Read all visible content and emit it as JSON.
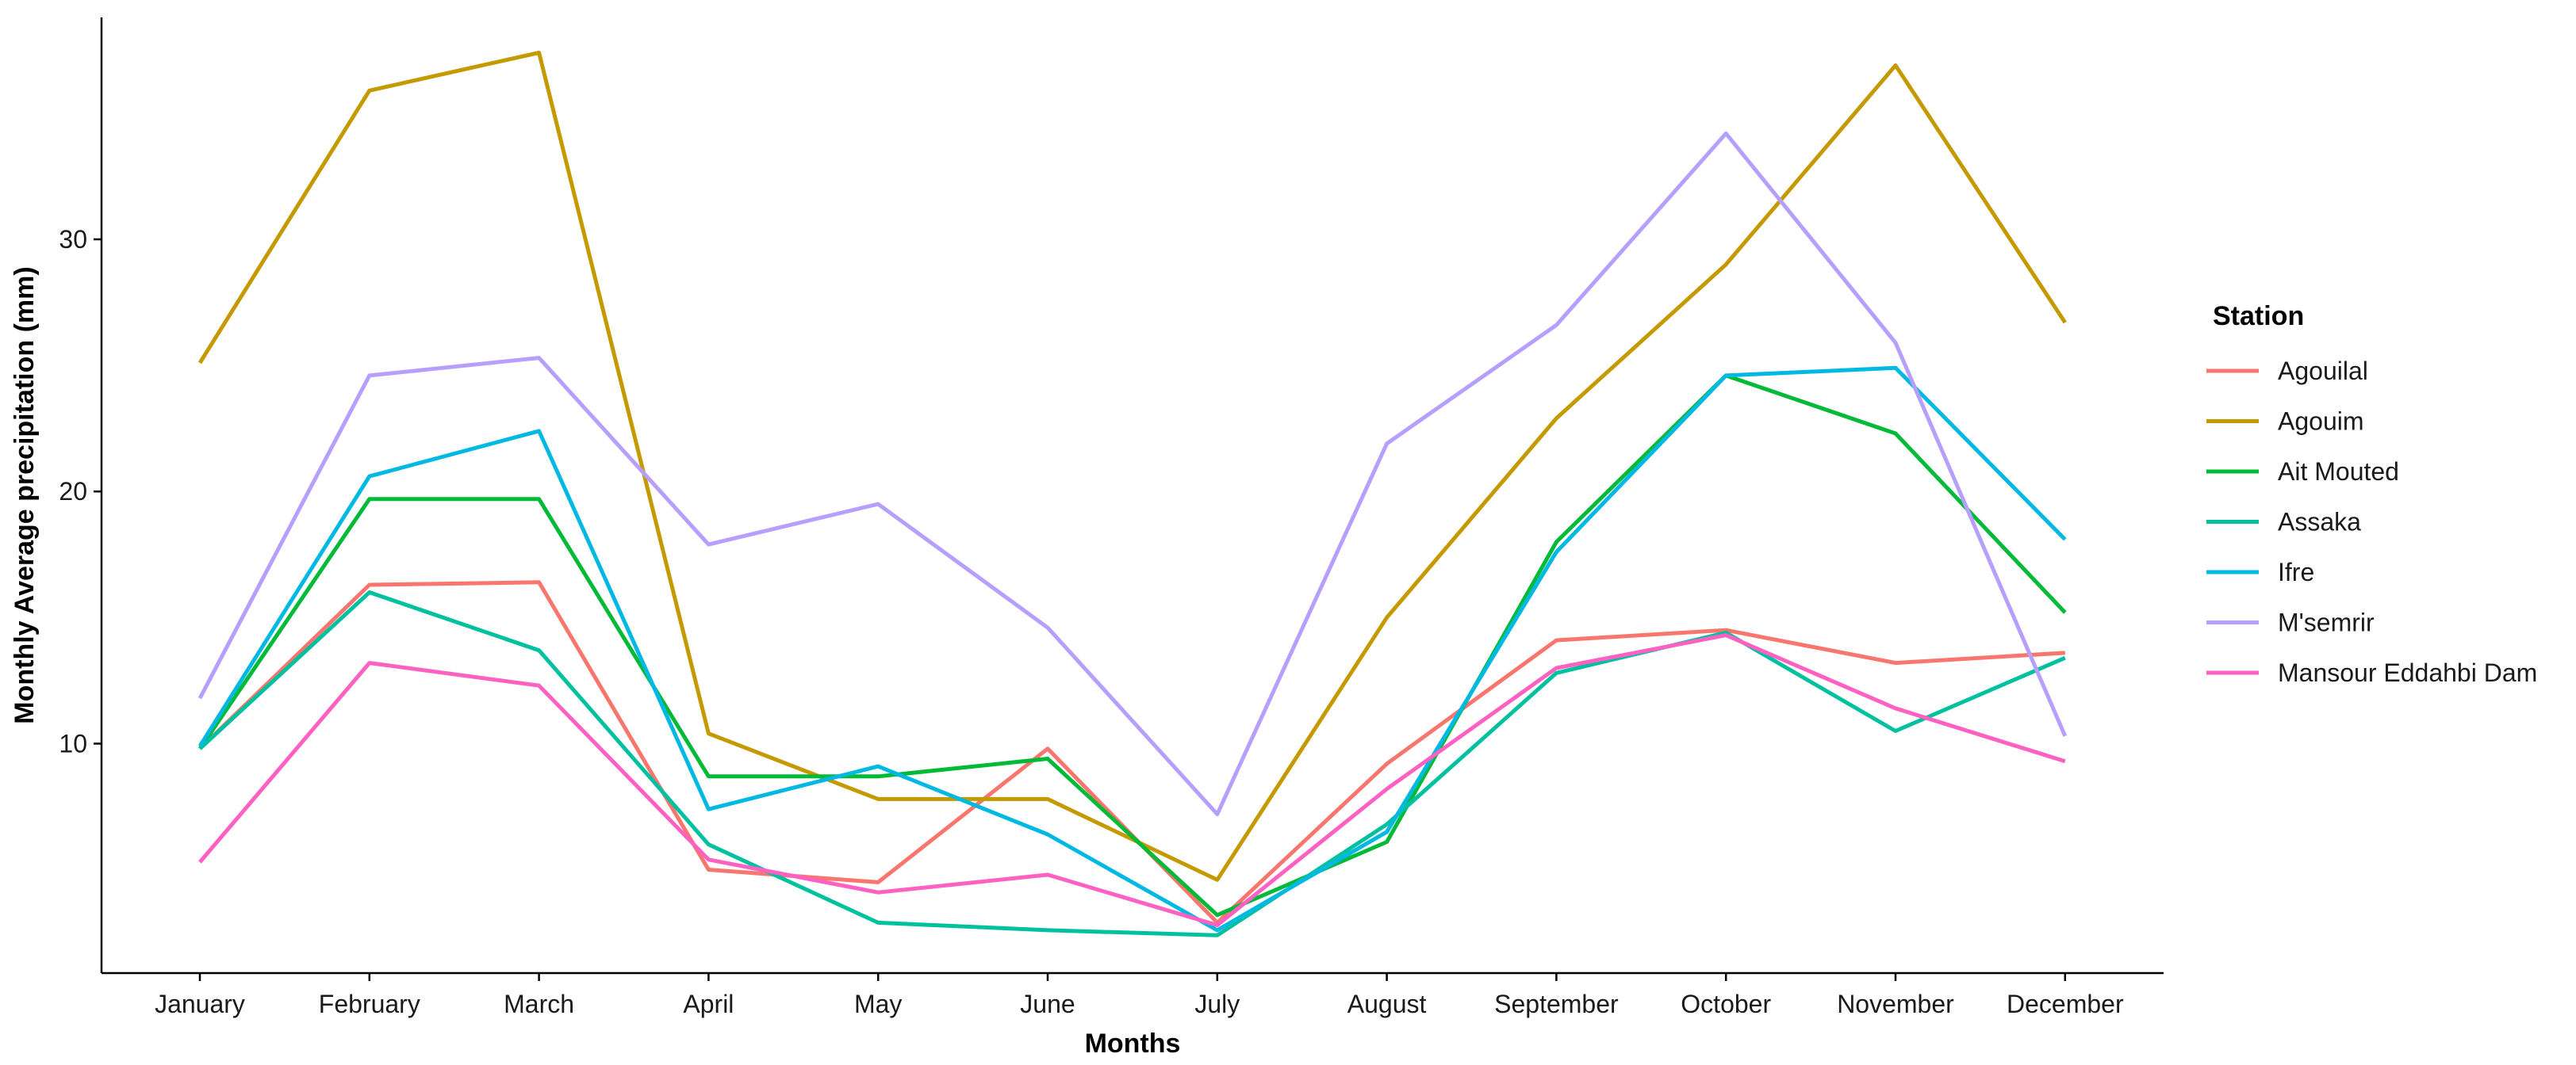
{
  "chart_data": {
    "type": "line",
    "title": "",
    "xlabel": "Months",
    "ylabel": "Monthly Average precipitation (mm)",
    "categories": [
      "January",
      "February",
      "March",
      "April",
      "May",
      "June",
      "July",
      "August",
      "September",
      "October",
      "November",
      "December"
    ],
    "y_ticks": [
      10,
      20,
      30
    ],
    "ylim": [
      0.9,
      38.8
    ],
    "grid": false,
    "legend": {
      "title": "Station",
      "placement": "right"
    },
    "series": [
      {
        "name": "Agouilal",
        "color": "#F8766D",
        "values": [
          9.8,
          16.3,
          16.4,
          5.0,
          4.5,
          9.8,
          2.9,
          9.2,
          14.1,
          14.5,
          13.2,
          13.6
        ]
      },
      {
        "name": "Agouim",
        "color": "#C49A00",
        "values": [
          25.1,
          35.9,
          37.4,
          10.4,
          7.8,
          7.8,
          4.6,
          15.0,
          22.9,
          29.0,
          36.9,
          26.7
        ]
      },
      {
        "name": "Ait Mouted",
        "color": "#00BA38",
        "values": [
          9.8,
          19.7,
          19.7,
          8.7,
          8.7,
          9.4,
          3.2,
          6.1,
          18.0,
          24.6,
          22.3,
          15.2
        ]
      },
      {
        "name": "Assaka",
        "color": "#00C19F",
        "values": [
          9.8,
          16.0,
          13.7,
          6.0,
          2.9,
          2.6,
          2.4,
          6.8,
          12.8,
          14.4,
          10.5,
          13.4
        ]
      },
      {
        "name": "Ifre",
        "color": "#00B9E3",
        "values": [
          9.9,
          20.6,
          22.4,
          7.4,
          9.1,
          6.4,
          2.6,
          6.5,
          17.6,
          24.6,
          24.9,
          18.1
        ]
      },
      {
        "name": "M'semrir",
        "color": "#B79FFF",
        "values": [
          11.8,
          24.6,
          25.3,
          17.9,
          19.5,
          14.6,
          7.2,
          21.9,
          26.6,
          34.2,
          25.9,
          10.3
        ]
      },
      {
        "name": "Mansour Eddahbi Dam",
        "color": "#FF61C3",
        "values": [
          5.3,
          13.2,
          12.3,
          5.4,
          4.1,
          4.8,
          2.8,
          8.2,
          13.0,
          14.3,
          11.4,
          9.3
        ]
      }
    ]
  }
}
